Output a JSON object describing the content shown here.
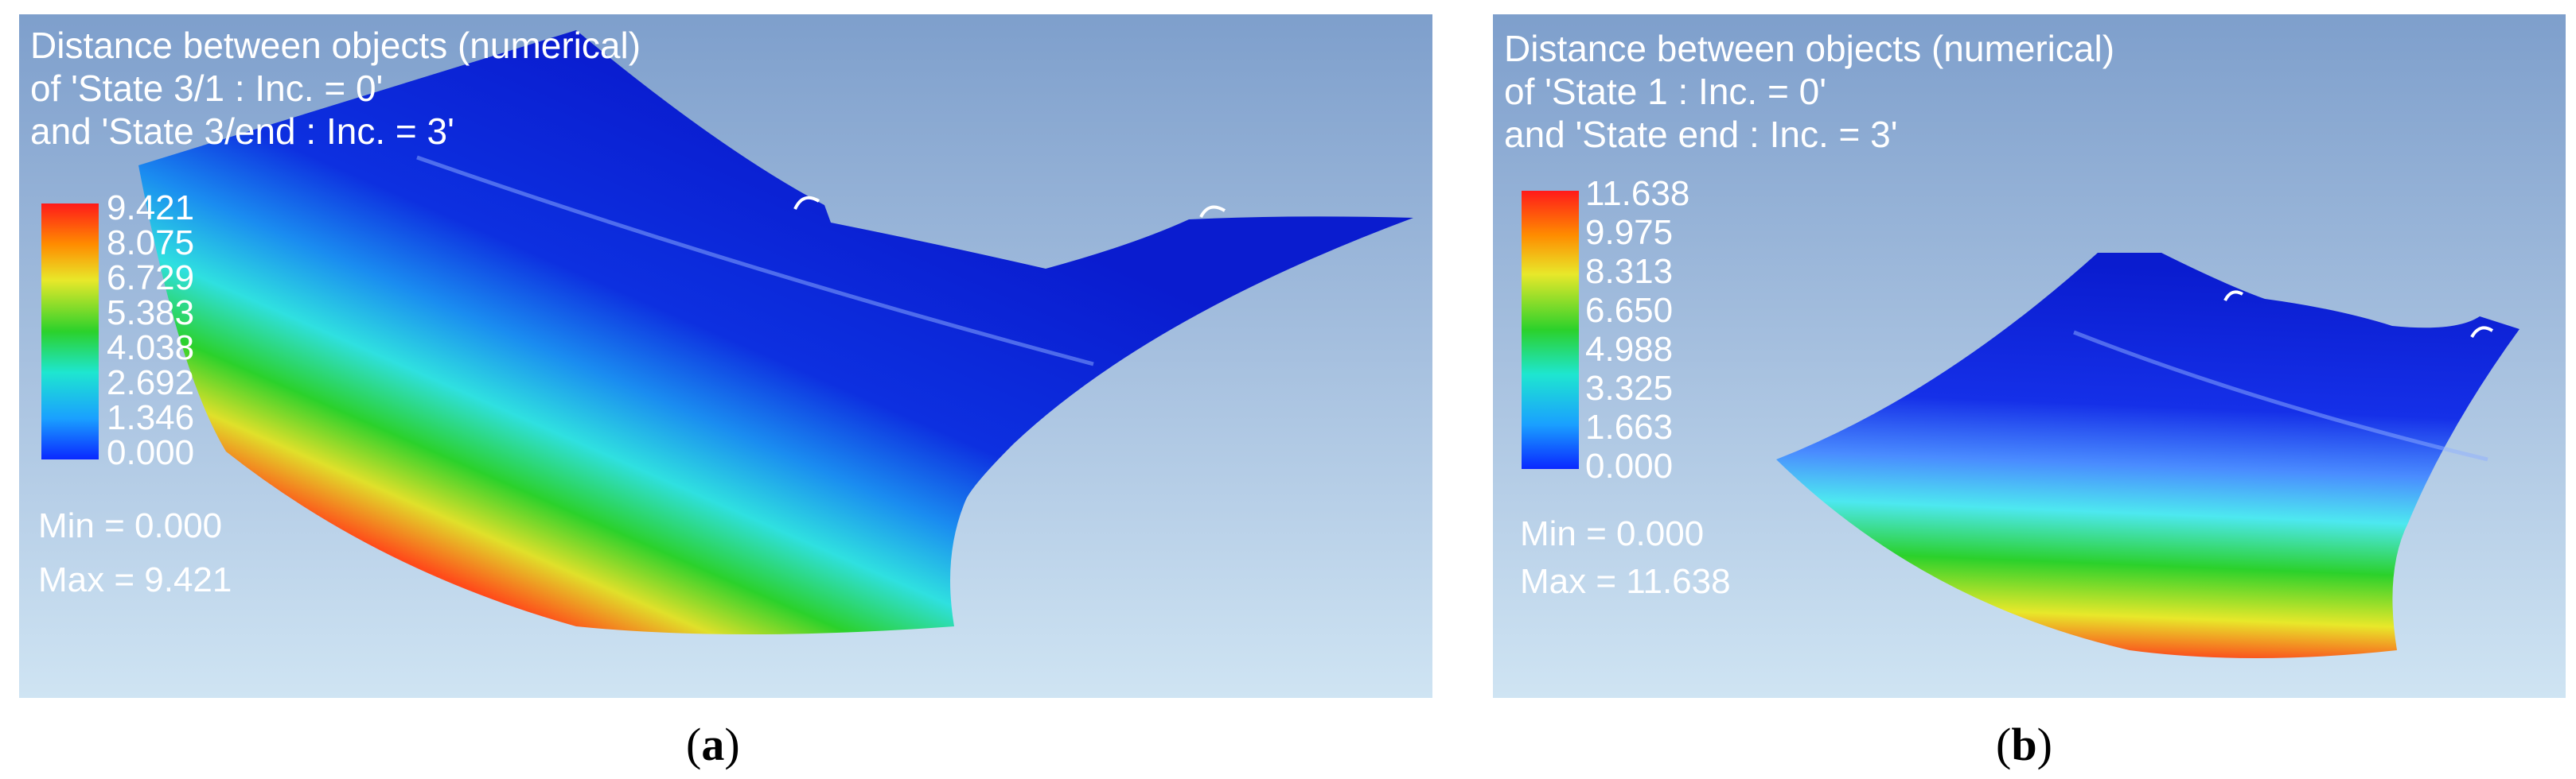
{
  "panels": [
    {
      "title_lines": [
        "Distance between objects (numerical)",
        "of 'State 3/1 : Inc. = 0'",
        "and 'State 3/end : Inc. = 3'"
      ],
      "colorbar_ticks": [
        "9.421",
        "8.075",
        "6.729",
        "5.383",
        "4.038",
        "2.692",
        "1.346",
        "0.000"
      ],
      "min_label": "Min =  0.000",
      "max_label": "Max =  9.421",
      "caption_letter": "a"
    },
    {
      "title_lines": [
        "Distance between objects (numerical)",
        "of 'State 1 : Inc. = 0'",
        "and 'State end : Inc. = 3'"
      ],
      "colorbar_ticks": [
        "11.638",
        "9.975",
        "8.313",
        "6.650",
        "4.988",
        "3.325",
        "1.663",
        "0.000"
      ],
      "min_label": "Min =  0.000",
      "max_label": "Max =  11.638",
      "caption_letter": "b"
    }
  ],
  "colors": {
    "background_top": "#7e9fcc",
    "background_bottom": "#cfe4f3",
    "scale_max": "#ff1a1a",
    "scale_min": "#0a28ff"
  },
  "icons": [
    "color-scale-legend",
    "deformed-panel-surface"
  ]
}
